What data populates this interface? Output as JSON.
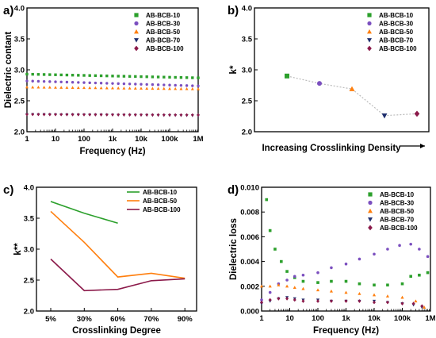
{
  "colors": {
    "green": "#2ca02c",
    "purple": "#7b4fbf",
    "orange": "#ff7f0e",
    "navy": "#1f2f6e",
    "maroon": "#8b1a4a",
    "axis": "#000000",
    "dotted_line": "#bbbbbb"
  },
  "chart_data": [
    {
      "panel": "a)",
      "type": "scatter",
      "xlabel": "Frequency (Hz)",
      "ylabel": "Dielectric contant",
      "xscale": "log",
      "xlim": [
        1,
        1000000
      ],
      "ylim": [
        2.0,
        4.0
      ],
      "xticks": [
        "1",
        "10",
        "100",
        "1k",
        "10k",
        "100k",
        "1M"
      ],
      "yticks": [
        "2.0",
        "2.5",
        "3.0",
        "3.5",
        "4.0"
      ],
      "legend_position": "top-right",
      "series": [
        {
          "name": "AB-BCB-10",
          "marker": "square",
          "color_key": "green",
          "start": 2.93,
          "end": 2.87
        },
        {
          "name": "AB-BCB-30",
          "marker": "circle",
          "color_key": "purple",
          "start": 2.82,
          "end": 2.74
        },
        {
          "name": "AB-BCB-50",
          "marker": "triangle-up",
          "color_key": "orange",
          "start": 2.72,
          "end": 2.69
        },
        {
          "name": "AB-BCB-70",
          "marker": "triangle-down",
          "color_key": "navy",
          "start": 2.28,
          "end": 2.26
        },
        {
          "name": "AB-BCB-100",
          "marker": "diamond",
          "color_key": "maroon",
          "start": 2.28,
          "end": 2.27
        }
      ]
    },
    {
      "panel": "b)",
      "type": "scatter",
      "xlabel": "Increasing Crosslinking Density",
      "ylabel": "k*",
      "ylim": [
        2.0,
        4.0
      ],
      "yticks": [
        "2.0",
        "2.5",
        "3.0",
        "3.5",
        "4.0"
      ],
      "legend_position": "top-right",
      "x": [
        1,
        2,
        3,
        4,
        5
      ],
      "points": [
        {
          "name": "AB-BCB-10",
          "marker": "square",
          "color_key": "green",
          "value": 2.9
        },
        {
          "name": "AB-BCB-30",
          "marker": "circle",
          "color_key": "purple",
          "value": 2.78
        },
        {
          "name": "AB-BCB-50",
          "marker": "triangle-up",
          "color_key": "orange",
          "value": 2.69
        },
        {
          "name": "AB-BCB-70",
          "marker": "triangle-down",
          "color_key": "navy",
          "value": 2.26
        },
        {
          "name": "AB-BCB-100",
          "marker": "diamond",
          "color_key": "maroon",
          "value": 2.29
        }
      ]
    },
    {
      "panel": "c)",
      "type": "line",
      "xlabel": "Crosslinking Degree",
      "ylabel": "k**",
      "categories": [
        "5%",
        "30%",
        "60%",
        "70%",
        "90%"
      ],
      "ylim": [
        2.0,
        4.0
      ],
      "yticks": [
        "2.0",
        "2.5",
        "3.0",
        "3.5",
        "4.0"
      ],
      "legend_position": "top-right",
      "series": [
        {
          "name": "AB-BCB-10",
          "color_key": "green",
          "values": [
            3.77,
            3.58,
            3.42,
            null,
            null
          ]
        },
        {
          "name": "AB-BCB-50",
          "color_key": "orange",
          "values": [
            3.61,
            3.11,
            2.55,
            2.61,
            2.53
          ]
        },
        {
          "name": "AB-BCB-100",
          "color_key": "maroon",
          "values": [
            2.84,
            2.33,
            2.35,
            2.49,
            2.52
          ]
        }
      ]
    },
    {
      "panel": "d)",
      "type": "scatter",
      "xlabel": "Frequency (Hz)",
      "ylabel": "Dielectric loss",
      "xscale": "log",
      "xlim": [
        1,
        1000000
      ],
      "ylim": [
        0,
        0.01
      ],
      "xticks": [
        "1",
        "10",
        "100",
        "1k",
        "10k",
        "100k",
        "1M"
      ],
      "yticks": [
        "0.000",
        "0.002",
        "0.004",
        "0.006",
        "0.008",
        "0.010"
      ],
      "legend_position": "top-right",
      "series": [
        {
          "name": "AB-BCB-10",
          "marker": "square",
          "color_key": "green",
          "points": [
            [
              1.5,
              0.009
            ],
            [
              2,
              0.0065
            ],
            [
              3,
              0.005
            ],
            [
              5,
              0.004
            ],
            [
              8,
              0.0032
            ],
            [
              15,
              0.0027
            ],
            [
              30,
              0.0024
            ],
            [
              100,
              0.0023
            ],
            [
              300,
              0.0024
            ],
            [
              1000,
              0.0024
            ],
            [
              3000,
              0.0022
            ],
            [
              10000,
              0.0021
            ],
            [
              30000,
              0.0021
            ],
            [
              100000,
              0.0022
            ],
            [
              200000,
              0.0028
            ],
            [
              400000,
              0.0029
            ],
            [
              800000,
              0.0031
            ]
          ]
        },
        {
          "name": "AB-BCB-30",
          "marker": "circle",
          "color_key": "purple",
          "points": [
            [
              1,
              0.0009
            ],
            [
              2,
              0.0015
            ],
            [
              4,
              0.0022
            ],
            [
              8,
              0.0025
            ],
            [
              15,
              0.0028
            ],
            [
              30,
              0.0029
            ],
            [
              100,
              0.0031
            ],
            [
              300,
              0.0035
            ],
            [
              1000,
              0.0038
            ],
            [
              3000,
              0.0042
            ],
            [
              10000,
              0.0046
            ],
            [
              30000,
              0.005
            ],
            [
              80000,
              0.0053
            ],
            [
              200000,
              0.0054
            ],
            [
              400000,
              0.005
            ],
            [
              800000,
              0.0044
            ]
          ]
        },
        {
          "name": "AB-BCB-50",
          "marker": "triangle-up",
          "color_key": "orange",
          "points": [
            [
              1,
              0.002
            ],
            [
              2,
              0.002
            ],
            [
              4,
              0.0021
            ],
            [
              8,
              0.002
            ],
            [
              15,
              0.0019
            ],
            [
              30,
              0.0018
            ],
            [
              100,
              0.0017
            ],
            [
              300,
              0.0016
            ],
            [
              1000,
              0.0015
            ],
            [
              3000,
              0.0014
            ],
            [
              10000,
              0.0013
            ],
            [
              30000,
              0.0012
            ],
            [
              100000,
              0.0011
            ],
            [
              300000,
              0.0008
            ],
            [
              600000,
              0.0003
            ]
          ]
        },
        {
          "name": "AB-BCB-70",
          "marker": "triangle-down",
          "color_key": "navy",
          "points": [
            [
              1,
              0.0006
            ],
            [
              2,
              0.0008
            ],
            [
              4,
              0.001
            ],
            [
              8,
              0.0011
            ],
            [
              15,
              0.001
            ],
            [
              30,
              0.0009
            ],
            [
              100,
              0.0009
            ],
            [
              300,
              0.0008
            ],
            [
              1000,
              0.0008
            ],
            [
              3000,
              0.0008
            ],
            [
              10000,
              0.0008
            ],
            [
              30000,
              0.0007
            ],
            [
              100000,
              0.0006
            ],
            [
              250000,
              0.0005
            ],
            [
              500000,
              0.0003
            ]
          ]
        },
        {
          "name": "AB-BCB-100",
          "marker": "diamond",
          "color_key": "maroon",
          "points": [
            [
              1,
              0.0007
            ],
            [
              2,
              0.0009
            ],
            [
              4,
              0.001
            ],
            [
              8,
              0.001
            ],
            [
              15,
              0.0009
            ],
            [
              30,
              0.0008
            ],
            [
              100,
              0.0008
            ],
            [
              300,
              0.0008
            ],
            [
              1000,
              0.0008
            ],
            [
              3000,
              0.0008
            ],
            [
              10000,
              0.0007
            ],
            [
              30000,
              0.0007
            ],
            [
              100000,
              0.0006
            ],
            [
              250000,
              0.0006
            ],
            [
              500000,
              0.0004
            ]
          ]
        }
      ]
    }
  ]
}
